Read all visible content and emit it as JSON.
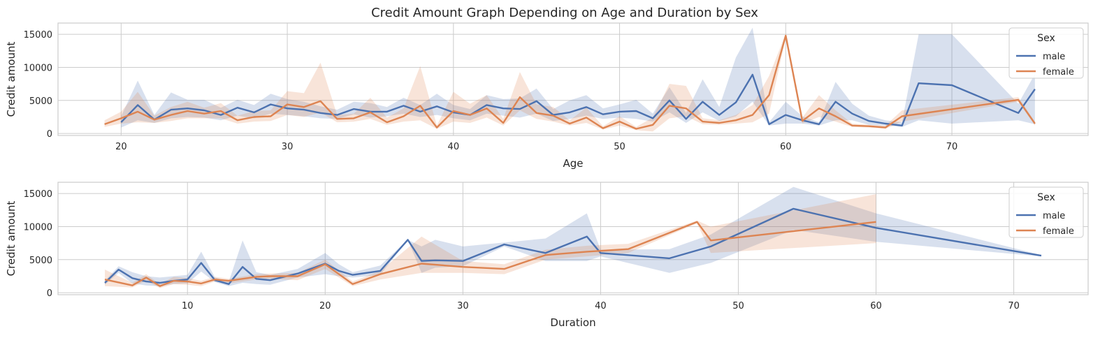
{
  "figure": {
    "title": "Credit Amount Graph Depending on Age and Duration by Sex"
  },
  "colors": {
    "male": "#4c72b0",
    "female": "#dd8452",
    "grid": "#cccccc"
  },
  "chart_data": [
    {
      "type": "line",
      "title": "Credit Amount Graph Depending on Age and Duration by Sex",
      "xlabel": "Age",
      "ylabel": "Credit amount",
      "xlim": [
        16.2,
        78.2
      ],
      "ylim": [
        -300,
        16700
      ],
      "xticks": [
        20,
        30,
        40,
        50,
        60,
        70
      ],
      "yticks": [
        0,
        5000,
        10000,
        15000
      ],
      "grid": true,
      "legend": {
        "title": "Sex",
        "position": "top-right",
        "entries": [
          "male",
          "female"
        ]
      },
      "series": [
        {
          "name": "male",
          "x": [
            20,
            21,
            22,
            23,
            24,
            25,
            26,
            27,
            28,
            29,
            30,
            31,
            32,
            33,
            34,
            35,
            36,
            37,
            38,
            39,
            40,
            41,
            42,
            43,
            44,
            45,
            46,
            47,
            48,
            49,
            50,
            51,
            52,
            53,
            54,
            55,
            56,
            57,
            58,
            59,
            60,
            61,
            62,
            63,
            64,
            65,
            66,
            67,
            68,
            70,
            74,
            75
          ],
          "y": [
            1700,
            4300,
            2100,
            3600,
            3800,
            3500,
            2800,
            3900,
            3200,
            4400,
            3800,
            3600,
            3100,
            2800,
            3700,
            3300,
            3300,
            4200,
            3300,
            4100,
            3200,
            2800,
            4300,
            3800,
            3700,
            4900,
            2800,
            3200,
            4000,
            2900,
            3300,
            3400,
            2300,
            5000,
            2200,
            4800,
            2800,
            4700,
            8900,
            1400,
            2800,
            2000,
            1400,
            4800,
            3000,
            1900,
            1500,
            1200,
            7600,
            7300,
            3100,
            6700
          ],
          "low": [
            900,
            2000,
            1600,
            2300,
            2500,
            2400,
            2000,
            2700,
            2300,
            3000,
            2800,
            2600,
            2300,
            2200,
            2900,
            2400,
            2600,
            3000,
            2500,
            2800,
            2300,
            2000,
            3000,
            2700,
            2400,
            3000,
            1900,
            2200,
            2700,
            2200,
            2400,
            2200,
            1800,
            3200,
            1600,
            3200,
            1900,
            2600,
            4800,
            1200,
            1500,
            1500,
            1200,
            2000,
            2000,
            1300,
            1200,
            1000,
            2000,
            1500,
            2000,
            1400
          ],
          "high": [
            2600,
            8000,
            2800,
            6200,
            5100,
            5100,
            3900,
            5100,
            4300,
            6000,
            5200,
            4800,
            4100,
            3600,
            4800,
            4600,
            4000,
            5400,
            4300,
            6000,
            4300,
            3700,
            5800,
            5200,
            5300,
            6800,
            3700,
            5000,
            5800,
            3800,
            4400,
            5100,
            3000,
            7000,
            3100,
            8200,
            4000,
            11500,
            16000,
            1700,
            4800,
            2600,
            1700,
            7800,
            4500,
            2700,
            2000,
            1700,
            15000,
            15000,
            4500,
            9000
          ]
        },
        {
          "name": "female",
          "x": [
            19,
            20,
            21,
            22,
            23,
            24,
            25,
            26,
            27,
            28,
            29,
            30,
            31,
            32,
            33,
            34,
            35,
            36,
            37,
            38,
            39,
            40,
            41,
            42,
            43,
            44,
            45,
            46,
            47,
            48,
            49,
            50,
            51,
            52,
            53,
            54,
            55,
            56,
            57,
            58,
            59,
            60,
            61,
            62,
            63,
            64,
            65,
            66,
            67,
            74,
            75
          ],
          "y": [
            1400,
            2300,
            3300,
            2100,
            2800,
            3400,
            3000,
            3400,
            2000,
            2500,
            2600,
            4400,
            4000,
            4900,
            2200,
            2300,
            3200,
            1700,
            2600,
            4200,
            900,
            3400,
            2800,
            3800,
            1600,
            5500,
            3100,
            2700,
            1500,
            2400,
            800,
            1800,
            700,
            1300,
            4200,
            3800,
            1800,
            1600,
            2000,
            2800,
            5800,
            14800,
            1900,
            3800,
            2600,
            1200,
            1100,
            900,
            2600,
            5100,
            1500
          ],
          "low": [
            1000,
            1500,
            1700,
            1600,
            1900,
            2300,
            2300,
            2300,
            1500,
            1800,
            1900,
            2800,
            2500,
            3200,
            1700,
            1800,
            2200,
            1300,
            1800,
            2000,
            700,
            1800,
            1600,
            2400,
            1200,
            3500,
            2200,
            1800,
            1200,
            1600,
            600,
            1200,
            500,
            300,
            2300,
            2600,
            1400,
            1300,
            1500,
            1700,
            3000,
            14500,
            1500,
            2500,
            1800,
            1000,
            900,
            700,
            1800,
            4800,
            1200
          ],
          "high": [
            2000,
            3300,
            6300,
            2700,
            4000,
            4800,
            3900,
            4600,
            2700,
            3400,
            3500,
            6400,
            6100,
            10700,
            2800,
            3000,
            5400,
            2400,
            3800,
            10200,
            1200,
            6300,
            4500,
            5800,
            2200,
            9300,
            4400,
            4000,
            2000,
            3900,
            1100,
            2600,
            1000,
            2400,
            7500,
            7200,
            2300,
            2000,
            2800,
            4300,
            8700,
            15100,
            2400,
            5800,
            3500,
            1500,
            1300,
            1200,
            3500,
            5500,
            1800
          ]
        }
      ]
    },
    {
      "type": "line",
      "xlabel": "Duration",
      "ylabel": "Credit amount",
      "xlim": [
        0.6,
        75.4
      ],
      "ylim": [
        -300,
        16700
      ],
      "xticks": [
        10,
        20,
        30,
        40,
        50,
        60,
        70
      ],
      "yticks": [
        0,
        5000,
        10000,
        15000
      ],
      "grid": true,
      "legend": {
        "title": "Sex",
        "position": "top-right",
        "entries": [
          "male",
          "female"
        ]
      },
      "series": [
        {
          "name": "male",
          "x": [
            4,
            5,
            6,
            7,
            8,
            9,
            10,
            11,
            12,
            13,
            14,
            15,
            16,
            18,
            20,
            21,
            22,
            24,
            26,
            27,
            28,
            30,
            33,
            36,
            39,
            40,
            45,
            48,
            54,
            60,
            72
          ],
          "y": [
            1500,
            3500,
            2200,
            1700,
            1500,
            1800,
            2000,
            4500,
            1900,
            1300,
            3900,
            2100,
            1900,
            2900,
            4400,
            3300,
            2700,
            3300,
            8000,
            4800,
            4900,
            4800,
            7300,
            6000,
            8500,
            6000,
            5200,
            7000,
            12700,
            9800,
            5600
          ],
          "low": [
            1200,
            3000,
            1400,
            1100,
            1000,
            1300,
            1400,
            3200,
            1600,
            1000,
            1500,
            1300,
            1200,
            2300,
            2800,
            2500,
            2300,
            2700,
            8000,
            3000,
            3800,
            4000,
            7000,
            4800,
            4800,
            5500,
            3000,
            4500,
            9500,
            7700,
            5500
          ],
          "high": [
            1800,
            4000,
            3100,
            2500,
            2300,
            2500,
            2700,
            6200,
            2300,
            1700,
            7900,
            3100,
            2700,
            3600,
            6000,
            4300,
            3100,
            4100,
            8000,
            7000,
            8000,
            7000,
            7600,
            8200,
            12000,
            6500,
            6600,
            8800,
            16000,
            12000,
            5700
          ]
        },
        {
          "name": "female",
          "x": [
            4,
            6,
            7,
            8,
            9,
            10,
            11,
            12,
            13,
            15,
            16,
            18,
            20,
            22,
            24,
            27,
            30,
            33,
            36,
            39,
            42,
            47,
            48,
            60
          ],
          "y": [
            2000,
            1100,
            2300,
            1000,
            1800,
            1700,
            1400,
            2000,
            1800,
            2400,
            2500,
            2500,
            4300,
            1300,
            2800,
            4400,
            3900,
            3600,
            5700,
            6200,
            6600,
            10700,
            7900,
            10700
          ],
          "low": [
            1000,
            800,
            1800,
            700,
            1300,
            1200,
            1000,
            1700,
            1400,
            2000,
            2100,
            1900,
            3600,
            1000,
            2000,
            3000,
            3000,
            2800,
            5000,
            5500,
            6000,
            10500,
            6000,
            7500
          ],
          "high": [
            3500,
            1500,
            2800,
            1300,
            2400,
            2200,
            1800,
            2400,
            2100,
            2800,
            2900,
            3000,
            5000,
            1700,
            3300,
            8500,
            4800,
            4300,
            6500,
            7100,
            7400,
            10900,
            10000,
            14900
          ]
        }
      ]
    }
  ]
}
